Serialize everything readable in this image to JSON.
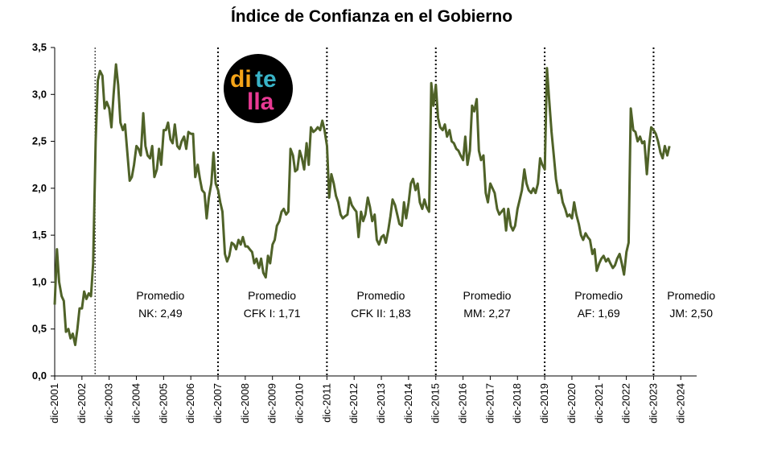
{
  "chart_data": {
    "type": "line",
    "title": "Índice de Confianza en el Gobierno",
    "xlabel": "",
    "ylabel": "",
    "ylim": [
      0,
      3.5
    ],
    "yticks": [
      "0,0",
      "0,5",
      "1,0",
      "1,5",
      "2,0",
      "2,5",
      "3,0",
      "3,5"
    ],
    "x_tick_labels": [
      "dic-2001",
      "dic-2002",
      "dic-2003",
      "dic-2004",
      "dic-2005",
      "dic-2006",
      "dic-2007",
      "dic-2008",
      "dic-2009",
      "dic-2010",
      "dic-2011",
      "dic-2012",
      "dic-2013",
      "dic-2014",
      "dic-2015",
      "dic-2016",
      "dic-2017",
      "dic-2018",
      "dic-2019",
      "dic-2020",
      "dic-2021",
      "dic-2022",
      "dic-2023",
      "dic-2024"
    ],
    "x_start_year": 2001.917,
    "x_end_year": 2025.5,
    "grid": false,
    "line_color": "#4f6228",
    "series": [
      {
        "points": [
          [
            2001.917,
            0.76
          ],
          [
            2002.0,
            1.35
          ],
          [
            2002.08,
            1.0
          ],
          [
            2002.17,
            0.85
          ],
          [
            2002.25,
            0.8
          ],
          [
            2002.33,
            0.47
          ],
          [
            2002.42,
            0.5
          ],
          [
            2002.5,
            0.4
          ],
          [
            2002.58,
            0.45
          ],
          [
            2002.67,
            0.33
          ],
          [
            2002.75,
            0.5
          ],
          [
            2002.83,
            0.72
          ],
          [
            2002.92,
            0.72
          ],
          [
            2003.0,
            0.9
          ],
          [
            2003.08,
            0.82
          ],
          [
            2003.17,
            0.88
          ],
          [
            2003.25,
            0.85
          ],
          [
            2003.33,
            1.2
          ],
          [
            2003.42,
            2.5
          ],
          [
            2003.5,
            3.15
          ],
          [
            2003.58,
            3.25
          ],
          [
            2003.67,
            3.2
          ],
          [
            2003.75,
            2.85
          ],
          [
            2003.83,
            2.92
          ],
          [
            2003.92,
            2.85
          ],
          [
            2004.0,
            2.65
          ],
          [
            2004.08,
            3.0
          ],
          [
            2004.17,
            3.32
          ],
          [
            2004.25,
            3.1
          ],
          [
            2004.33,
            2.7
          ],
          [
            2004.42,
            2.62
          ],
          [
            2004.5,
            2.68
          ],
          [
            2004.58,
            2.4
          ],
          [
            2004.67,
            2.08
          ],
          [
            2004.75,
            2.12
          ],
          [
            2004.83,
            2.25
          ],
          [
            2004.92,
            2.45
          ],
          [
            2005.0,
            2.42
          ],
          [
            2005.08,
            2.35
          ],
          [
            2005.17,
            2.8
          ],
          [
            2005.25,
            2.45
          ],
          [
            2005.33,
            2.35
          ],
          [
            2005.42,
            2.32
          ],
          [
            2005.5,
            2.45
          ],
          [
            2005.58,
            2.12
          ],
          [
            2005.67,
            2.2
          ],
          [
            2005.75,
            2.42
          ],
          [
            2005.83,
            2.25
          ],
          [
            2005.92,
            2.62
          ],
          [
            2006.0,
            2.62
          ],
          [
            2006.08,
            2.7
          ],
          [
            2006.17,
            2.52
          ],
          [
            2006.25,
            2.48
          ],
          [
            2006.33,
            2.68
          ],
          [
            2006.42,
            2.45
          ],
          [
            2006.5,
            2.42
          ],
          [
            2006.58,
            2.5
          ],
          [
            2006.67,
            2.55
          ],
          [
            2006.75,
            2.42
          ],
          [
            2006.83,
            2.6
          ],
          [
            2006.92,
            2.58
          ],
          [
            2007.0,
            2.58
          ],
          [
            2007.08,
            2.12
          ],
          [
            2007.17,
            2.25
          ],
          [
            2007.25,
            2.1
          ],
          [
            2007.33,
            1.98
          ],
          [
            2007.42,
            1.95
          ],
          [
            2007.5,
            1.68
          ],
          [
            2007.58,
            1.9
          ],
          [
            2007.67,
            2.05
          ],
          [
            2007.75,
            2.38
          ],
          [
            2007.83,
            2.05
          ],
          [
            2007.92,
            1.98
          ],
          [
            2008.0,
            1.85
          ],
          [
            2008.08,
            1.75
          ],
          [
            2008.17,
            1.3
          ],
          [
            2008.25,
            1.22
          ],
          [
            2008.33,
            1.28
          ],
          [
            2008.42,
            1.42
          ],
          [
            2008.5,
            1.4
          ],
          [
            2008.58,
            1.35
          ],
          [
            2008.67,
            1.45
          ],
          [
            2008.75,
            1.4
          ],
          [
            2008.83,
            1.48
          ],
          [
            2008.92,
            1.38
          ],
          [
            2009.0,
            1.38
          ],
          [
            2009.08,
            1.35
          ],
          [
            2009.17,
            1.32
          ],
          [
            2009.25,
            1.2
          ],
          [
            2009.33,
            1.25
          ],
          [
            2009.42,
            1.15
          ],
          [
            2009.5,
            1.25
          ],
          [
            2009.58,
            1.1
          ],
          [
            2009.67,
            1.05
          ],
          [
            2009.75,
            1.28
          ],
          [
            2009.83,
            1.2
          ],
          [
            2009.92,
            1.4
          ],
          [
            2010.0,
            1.45
          ],
          [
            2010.08,
            1.6
          ],
          [
            2010.17,
            1.65
          ],
          [
            2010.25,
            1.75
          ],
          [
            2010.33,
            1.78
          ],
          [
            2010.42,
            1.72
          ],
          [
            2010.5,
            1.75
          ],
          [
            2010.58,
            2.42
          ],
          [
            2010.67,
            2.35
          ],
          [
            2010.75,
            2.18
          ],
          [
            2010.83,
            2.2
          ],
          [
            2010.92,
            2.4
          ],
          [
            2011.0,
            2.32
          ],
          [
            2011.08,
            2.2
          ],
          [
            2011.17,
            2.48
          ],
          [
            2011.25,
            2.25
          ],
          [
            2011.33,
            2.65
          ],
          [
            2011.42,
            2.6
          ],
          [
            2011.5,
            2.62
          ],
          [
            2011.58,
            2.65
          ],
          [
            2011.67,
            2.62
          ],
          [
            2011.75,
            2.72
          ],
          [
            2011.83,
            2.62
          ],
          [
            2011.92,
            2.45
          ],
          [
            2012.0,
            1.9
          ],
          [
            2012.08,
            2.15
          ],
          [
            2012.17,
            2.05
          ],
          [
            2012.25,
            1.92
          ],
          [
            2012.33,
            1.85
          ],
          [
            2012.42,
            1.72
          ],
          [
            2012.5,
            1.68
          ],
          [
            2012.58,
            1.7
          ],
          [
            2012.67,
            1.72
          ],
          [
            2012.75,
            1.9
          ],
          [
            2012.83,
            1.82
          ],
          [
            2012.92,
            1.78
          ],
          [
            2013.0,
            1.75
          ],
          [
            2013.08,
            1.48
          ],
          [
            2013.17,
            1.75
          ],
          [
            2013.25,
            1.65
          ],
          [
            2013.33,
            1.72
          ],
          [
            2013.42,
            1.9
          ],
          [
            2013.5,
            1.8
          ],
          [
            2013.58,
            1.65
          ],
          [
            2013.67,
            1.72
          ],
          [
            2013.75,
            1.45
          ],
          [
            2013.83,
            1.4
          ],
          [
            2013.92,
            1.48
          ],
          [
            2014.0,
            1.5
          ],
          [
            2014.08,
            1.42
          ],
          [
            2014.17,
            1.55
          ],
          [
            2014.25,
            1.7
          ],
          [
            2014.33,
            1.88
          ],
          [
            2014.42,
            1.82
          ],
          [
            2014.5,
            1.72
          ],
          [
            2014.58,
            1.62
          ],
          [
            2014.67,
            1.6
          ],
          [
            2014.75,
            1.85
          ],
          [
            2014.83,
            1.68
          ],
          [
            2014.92,
            1.85
          ],
          [
            2015.0,
            2.05
          ],
          [
            2015.08,
            2.1
          ],
          [
            2015.17,
            1.98
          ],
          [
            2015.25,
            2.05
          ],
          [
            2015.33,
            1.85
          ],
          [
            2015.42,
            1.78
          ],
          [
            2015.5,
            1.88
          ],
          [
            2015.58,
            1.8
          ],
          [
            2015.67,
            1.75
          ],
          [
            2015.75,
            3.12
          ],
          [
            2015.83,
            2.88
          ],
          [
            2015.92,
            3.1
          ],
          [
            2016.0,
            2.75
          ],
          [
            2016.08,
            2.65
          ],
          [
            2016.17,
            2.62
          ],
          [
            2016.25,
            2.68
          ],
          [
            2016.33,
            2.55
          ],
          [
            2016.42,
            2.62
          ],
          [
            2016.5,
            2.5
          ],
          [
            2016.58,
            2.48
          ],
          [
            2016.67,
            2.42
          ],
          [
            2016.75,
            2.4
          ],
          [
            2016.83,
            2.35
          ],
          [
            2016.92,
            2.3
          ],
          [
            2017.0,
            2.55
          ],
          [
            2017.08,
            2.25
          ],
          [
            2017.17,
            2.4
          ],
          [
            2017.25,
            2.88
          ],
          [
            2017.33,
            2.82
          ],
          [
            2017.42,
            2.95
          ],
          [
            2017.5,
            2.4
          ],
          [
            2017.58,
            2.3
          ],
          [
            2017.67,
            2.35
          ],
          [
            2017.75,
            1.95
          ],
          [
            2017.83,
            1.85
          ],
          [
            2017.92,
            2.05
          ],
          [
            2018.0,
            2.0
          ],
          [
            2018.08,
            1.95
          ],
          [
            2018.17,
            1.78
          ],
          [
            2018.25,
            1.72
          ],
          [
            2018.33,
            1.75
          ],
          [
            2018.42,
            1.78
          ],
          [
            2018.5,
            1.55
          ],
          [
            2018.58,
            1.78
          ],
          [
            2018.67,
            1.6
          ],
          [
            2018.75,
            1.55
          ],
          [
            2018.83,
            1.6
          ],
          [
            2018.92,
            1.78
          ],
          [
            2019.0,
            1.88
          ],
          [
            2019.08,
            1.98
          ],
          [
            2019.17,
            2.2
          ],
          [
            2019.25,
            2.05
          ],
          [
            2019.33,
            1.98
          ],
          [
            2019.42,
            1.95
          ],
          [
            2019.5,
            2.0
          ],
          [
            2019.58,
            1.95
          ],
          [
            2019.67,
            2.05
          ],
          [
            2019.75,
            2.32
          ],
          [
            2019.83,
            2.25
          ],
          [
            2019.92,
            2.2
          ],
          [
            2020.0,
            3.28
          ],
          [
            2020.08,
            2.95
          ],
          [
            2020.17,
            2.6
          ],
          [
            2020.25,
            2.35
          ],
          [
            2020.33,
            2.1
          ],
          [
            2020.42,
            1.95
          ],
          [
            2020.5,
            1.98
          ],
          [
            2020.58,
            1.85
          ],
          [
            2020.67,
            1.78
          ],
          [
            2020.75,
            1.7
          ],
          [
            2020.83,
            1.72
          ],
          [
            2020.92,
            1.68
          ],
          [
            2021.0,
            1.85
          ],
          [
            2021.08,
            1.72
          ],
          [
            2021.17,
            1.62
          ],
          [
            2021.25,
            1.5
          ],
          [
            2021.33,
            1.45
          ],
          [
            2021.42,
            1.52
          ],
          [
            2021.5,
            1.48
          ],
          [
            2021.58,
            1.45
          ],
          [
            2021.67,
            1.3
          ],
          [
            2021.75,
            1.35
          ],
          [
            2021.83,
            1.12
          ],
          [
            2021.92,
            1.2
          ],
          [
            2022.0,
            1.25
          ],
          [
            2022.08,
            1.28
          ],
          [
            2022.17,
            1.22
          ],
          [
            2022.25,
            1.25
          ],
          [
            2022.33,
            1.2
          ],
          [
            2022.42,
            1.15
          ],
          [
            2022.5,
            1.18
          ],
          [
            2022.58,
            1.25
          ],
          [
            2022.67,
            1.3
          ],
          [
            2022.75,
            1.2
          ],
          [
            2022.83,
            1.08
          ],
          [
            2022.92,
            1.32
          ],
          [
            2023.0,
            1.42
          ],
          [
            2023.08,
            2.85
          ],
          [
            2023.17,
            2.62
          ],
          [
            2023.25,
            2.6
          ],
          [
            2023.33,
            2.5
          ],
          [
            2023.42,
            2.55
          ],
          [
            2023.5,
            2.48
          ],
          [
            2023.58,
            2.5
          ],
          [
            2023.67,
            2.15
          ],
          [
            2023.75,
            2.45
          ],
          [
            2023.83,
            2.65
          ],
          [
            2023.92,
            2.62
          ],
          [
            2024.0,
            2.58
          ],
          [
            2024.08,
            2.5
          ],
          [
            2024.17,
            2.38
          ],
          [
            2024.25,
            2.32
          ],
          [
            2024.33,
            2.45
          ],
          [
            2024.42,
            2.35
          ],
          [
            2024.5,
            2.45
          ]
        ]
      }
    ],
    "dividers": [
      {
        "x": 2003.4,
        "style": "thin"
      },
      {
        "x": 2007.917,
        "style": "dotted"
      },
      {
        "x": 2011.917,
        "style": "dotted"
      },
      {
        "x": 2015.917,
        "style": "dotted"
      },
      {
        "x": 2019.917,
        "style": "dotted"
      },
      {
        "x": 2023.917,
        "style": "dotted"
      }
    ],
    "annotations": [
      {
        "line1": "Promedio",
        "line2": "NK: 2,49",
        "x": 2005.8
      },
      {
        "line1": "Promedio",
        "line2": "CFK I: 1,71",
        "x": 2009.9
      },
      {
        "line1": "Promedio",
        "line2": "CFK II: 1,83",
        "x": 2013.9
      },
      {
        "line1": "Promedio",
        "line2": "MM: 2,27",
        "x": 2017.8
      },
      {
        "line1": "Promedio",
        "line2": "AF: 1,69",
        "x": 2021.9
      },
      {
        "line1": "Promedio",
        "line2": "JM: 2,50",
        "x": 2025.3
      }
    ]
  },
  "logo": {
    "syllables": [
      "di",
      "te",
      "lla"
    ],
    "colors": [
      "#f5a418",
      "#39b4c8",
      "#e83a94"
    ],
    "background": "#000000"
  }
}
